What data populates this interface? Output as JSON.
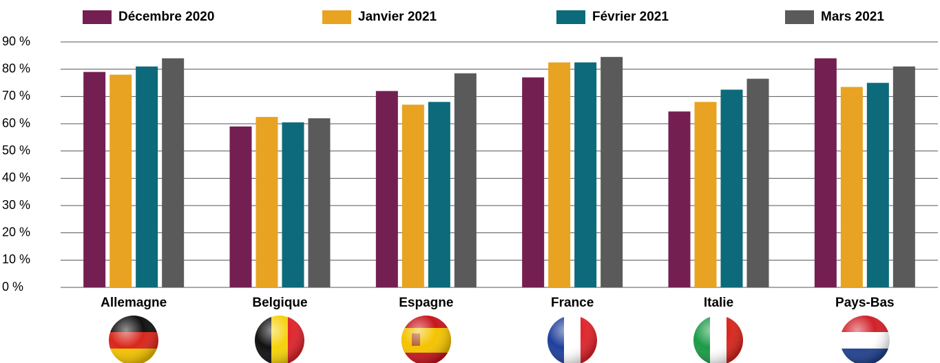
{
  "chart_data": {
    "type": "bar",
    "categories": [
      "Allemagne",
      "Belgique",
      "Espagne",
      "France",
      "Italie",
      "Pays-Bas"
    ],
    "series": [
      {
        "name": "Décembre 2020",
        "color": "#741f52",
        "values": [
          79,
          59,
          72,
          77,
          64.5,
          84
        ]
      },
      {
        "name": "Janvier 2021",
        "color": "#e8a322",
        "values": [
          78,
          62.5,
          67,
          82.5,
          68,
          73.5
        ]
      },
      {
        "name": "Février 2021",
        "color": "#0c6a7b",
        "values": [
          81,
          60.5,
          68,
          82.5,
          72.5,
          75
        ]
      },
      {
        "name": "Mars 2021",
        "color": "#5a5a5a",
        "values": [
          84,
          62,
          78.5,
          84.5,
          76.5,
          81
        ]
      }
    ],
    "ylim": [
      0,
      90
    ],
    "yticks": [
      {
        "value": 0,
        "label": "0 %"
      },
      {
        "value": 10,
        "label": "10 %"
      },
      {
        "value": 20,
        "label": "20 %"
      },
      {
        "value": 30,
        "label": "30 %"
      },
      {
        "value": 40,
        "label": "40 %"
      },
      {
        "value": 50,
        "label": "50 %"
      },
      {
        "value": 60,
        "label": "60 %"
      },
      {
        "value": 70,
        "label": "70 %"
      },
      {
        "value": 80,
        "label": "80 %"
      },
      {
        "value": 90,
        "label": "90 %"
      }
    ],
    "grid": true,
    "legend": "top"
  }
}
